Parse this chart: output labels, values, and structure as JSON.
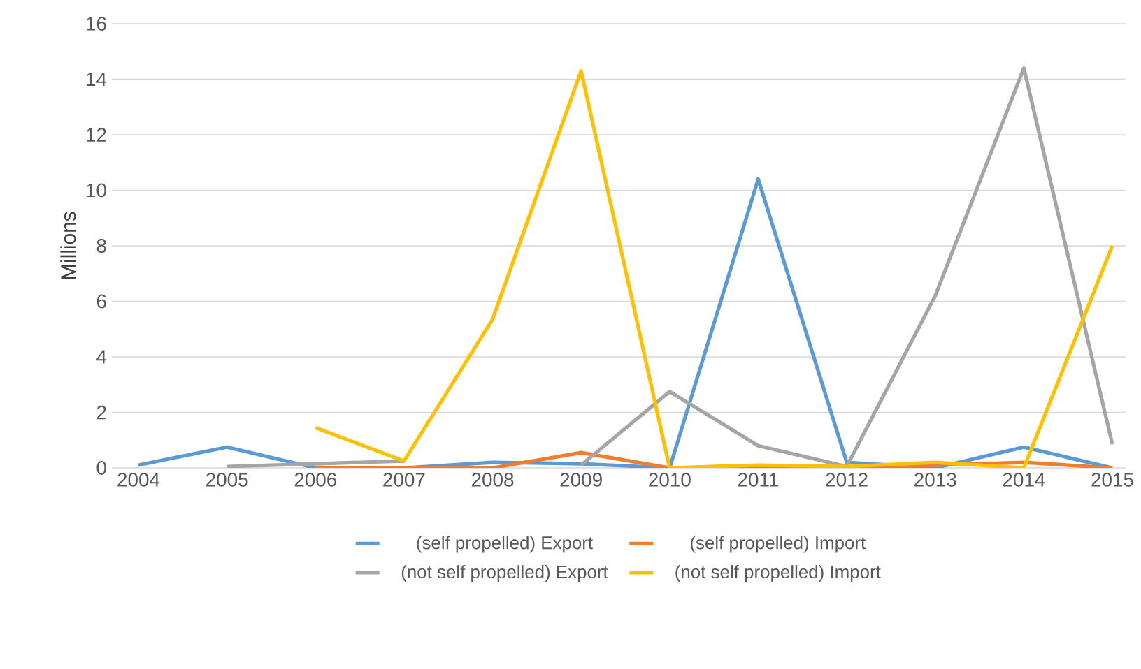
{
  "chart_data": {
    "type": "line",
    "ylabel": "Millions",
    "categories": [
      "2004",
      "2005",
      "2006",
      "2007",
      "2008",
      "2009",
      "2010",
      "2011",
      "2012",
      "2013",
      "2014",
      "2015"
    ],
    "series": [
      {
        "name": "(self propelled) Export",
        "color": "#5b9bd5",
        "values": [
          0.1,
          0.75,
          0,
          0,
          0.2,
          0.15,
          0,
          10.4,
          0.2,
          0,
          0.75,
          0
        ]
      },
      {
        "name": "(self propelled) Import",
        "color": "#ed7d31",
        "values": [
          null,
          null,
          0,
          0,
          0,
          0.55,
          0,
          0,
          0,
          0.1,
          0.2,
          0
        ]
      },
      {
        "name": "(not self propelled) Export",
        "color": "#a5a5a5",
        "values": [
          null,
          0.05,
          0.15,
          0.25,
          null,
          0.1,
          2.75,
          0.8,
          0.05,
          6.2,
          14.4,
          0.85
        ]
      },
      {
        "name": "(not self propelled) Import",
        "color": "#ffc000",
        "values": [
          null,
          null,
          1.45,
          0.25,
          5.35,
          14.3,
          0,
          0.1,
          0.05,
          0.2,
          0,
          8.0
        ]
      }
    ],
    "ylim": [
      0,
      16
    ],
    "yticks": [
      0,
      2,
      4,
      6,
      8,
      10,
      12,
      14,
      16
    ],
    "grid": "y",
    "legend": "bottom",
    "marker": "none",
    "line_style": "solid"
  }
}
